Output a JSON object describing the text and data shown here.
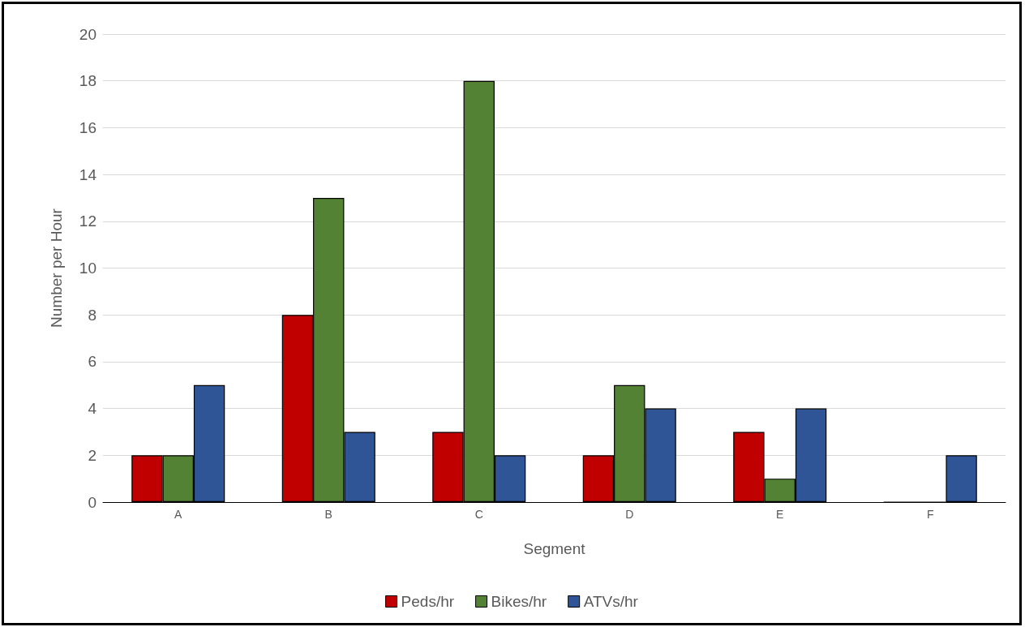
{
  "chart_data": {
    "type": "bar",
    "xlabel": "Segment",
    "ylabel": "Number per Hour",
    "categories": [
      "A",
      "B",
      "C",
      "D",
      "E",
      "F"
    ],
    "series": [
      {
        "name": "Peds/hr",
        "color": "#c00000",
        "values": [
          2,
          8,
          3,
          2,
          3,
          0
        ]
      },
      {
        "name": "Bikes/hr",
        "color": "#548235",
        "values": [
          2,
          13,
          18,
          5,
          1,
          0
        ]
      },
      {
        "name": "ATVs/hr",
        "color": "#2f5597",
        "values": [
          5,
          3,
          2,
          4,
          4,
          2
        ]
      }
    ],
    "ylim": [
      0,
      20
    ],
    "yticks": [
      0,
      2,
      4,
      6,
      8,
      10,
      12,
      14,
      16,
      18,
      20
    ],
    "grid": "y",
    "legend": "bottom"
  }
}
